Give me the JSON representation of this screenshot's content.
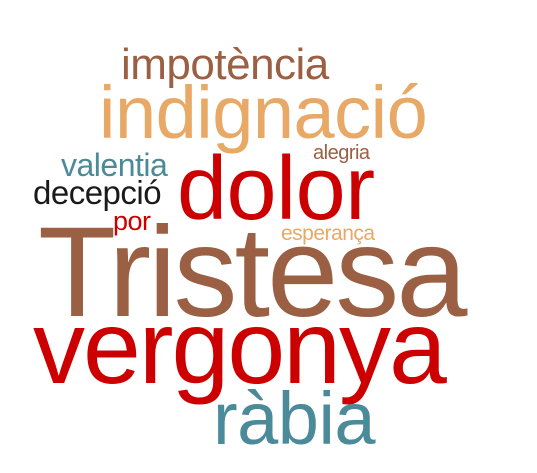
{
  "word_cloud": {
    "words": [
      {
        "text": "impotència",
        "color": "#9b5f44"
      },
      {
        "text": "indignació",
        "color": "#e8a866"
      },
      {
        "text": "alegria",
        "color": "#9b5f44"
      },
      {
        "text": "valentia",
        "color": "#4b8a99"
      },
      {
        "text": "dolor",
        "color": "#cc0000"
      },
      {
        "text": "decepció",
        "color": "#1a1a1a"
      },
      {
        "text": "por",
        "color": "#cc0000"
      },
      {
        "text": "esperança",
        "color": "#e8a866"
      },
      {
        "text": "Tristesa",
        "color": "#9b5f44"
      },
      {
        "text": "vergonya",
        "color": "#cc0000"
      },
      {
        "text": "ràbia",
        "color": "#4b8a99"
      }
    ]
  }
}
